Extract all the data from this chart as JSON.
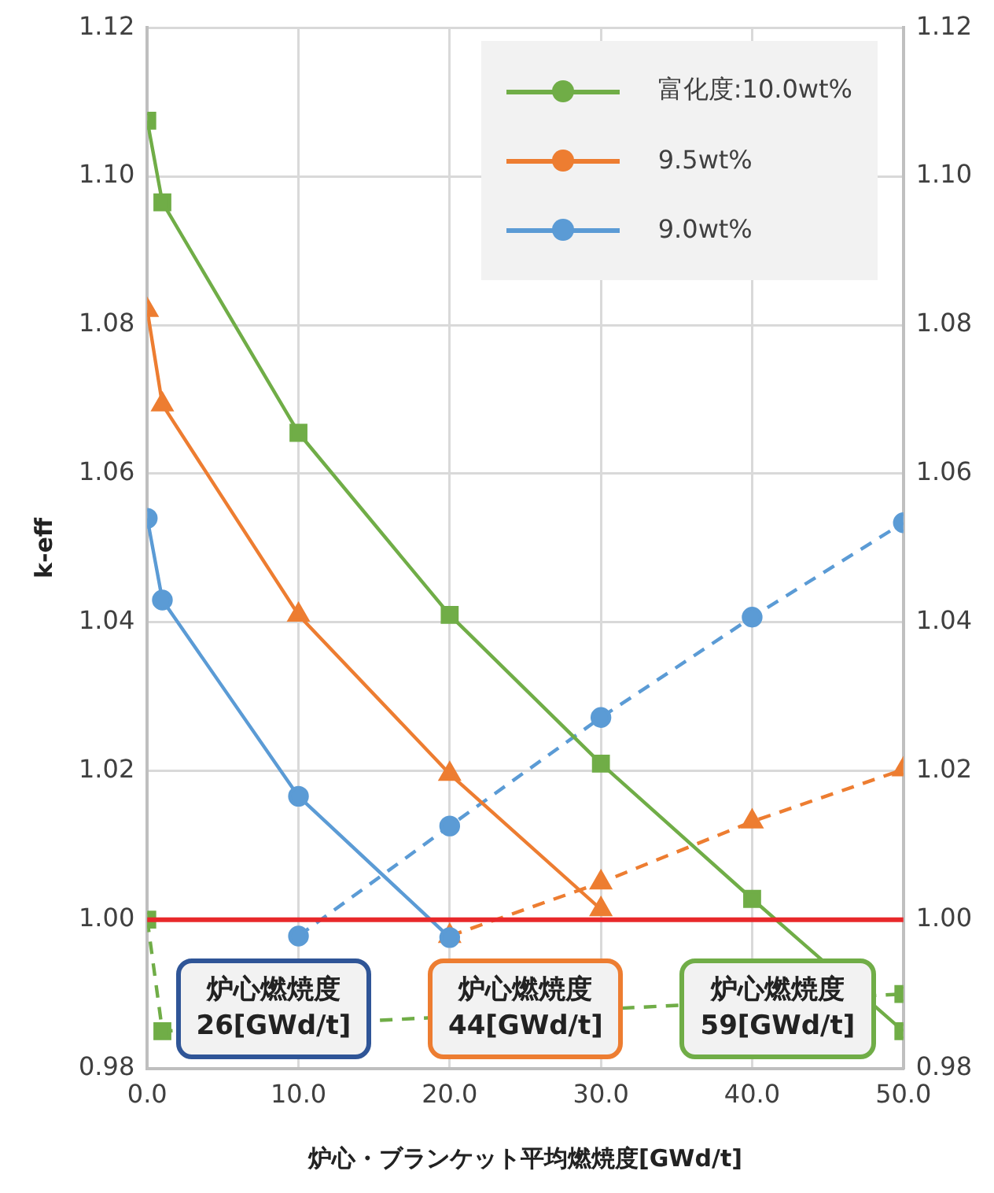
{
  "chart_data": {
    "type": "line",
    "xlabel": "炉心・ブランケット平均燃焼度[GWd/t]",
    "ylabel": "k-eff",
    "x": [
      0,
      1,
      10,
      20,
      30,
      40,
      50
    ],
    "series": [
      {
        "name": "富化度:10.0wt%",
        "color": "#70ad47",
        "marker": "square",
        "line_style": "solid",
        "values": [
          1.1075,
          1.0965,
          1.0655,
          1.041,
          1.021,
          1.0028,
          0.985
        ]
      },
      {
        "name": "9.5wt%",
        "color": "#ed7d31",
        "marker": "triangle",
        "line_style": "solid",
        "values": [
          1.082,
          1.0693,
          1.041,
          1.0196,
          1.0014,
          null,
          null
        ]
      },
      {
        "name": "9.0wt%",
        "color": "#5b9bd5",
        "marker": "circle",
        "line_style": "solid",
        "values": [
          1.054,
          1.043,
          1.0166,
          0.9976,
          null,
          null,
          null
        ]
      },
      {
        "color": "#70ad47",
        "marker": "square",
        "line_style": "dashed",
        "values": [
          1.0,
          0.985,
          null,
          null,
          null,
          null,
          0.99
        ]
      },
      {
        "color": "#ed7d31",
        "marker": "triangle",
        "line_style": "dashed",
        "values": [
          null,
          null,
          null,
          0.9978,
          1.005,
          1.0132,
          1.0202
        ]
      },
      {
        "color": "#5b9bd5",
        "marker": "circle",
        "line_style": "dashed",
        "values": [
          null,
          null,
          0.9978,
          1.0126,
          1.0272,
          1.0407,
          1.0534
        ]
      }
    ],
    "xlim": [
      0,
      50
    ],
    "xticks": [
      {
        "value": 0,
        "label": "0.0"
      },
      {
        "value": 10,
        "label": "10.0"
      },
      {
        "value": 20,
        "label": "20.0"
      },
      {
        "value": 30,
        "label": "30.0"
      },
      {
        "value": 40,
        "label": "40.0"
      },
      {
        "value": 50,
        "label": "50.0"
      }
    ],
    "ylim": [
      0.98,
      1.12
    ],
    "yticks": [
      0.98,
      {
        "value": 1.0,
        "label": "1.00"
      },
      1.02,
      1.04,
      1.06,
      1.08,
      {
        "value": 1.1,
        "label": "1.10"
      },
      1.12
    ],
    "y2lim": [
      0.98,
      1.12
    ],
    "y2ticks": [
      0.98,
      {
        "value": 1.0,
        "label": "1.00"
      },
      1.02,
      1.04,
      1.06,
      1.08,
      {
        "value": 1.1,
        "label": "1.10"
      },
      1.12
    ],
    "ref_lines": [
      {
        "axis": "y",
        "value": 1.0,
        "color": "#e8282b"
      }
    ],
    "annotations": [
      "炉心燃焼度\n26[GWd/t]",
      "炉心燃焼度\n44[GWd/t]",
      "炉心燃焼度\n59[GWd/t]"
    ],
    "grid": true,
    "legend": "top right"
  }
}
